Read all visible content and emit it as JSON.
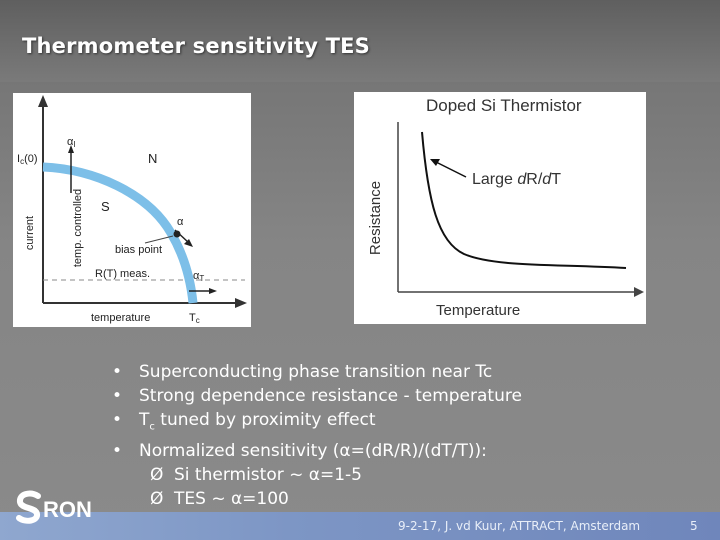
{
  "slide": {
    "title": "Thermometer sensitivity TES",
    "footer": "9-2-17, J. vd Kuur, ATTRACT, Amsterdam",
    "page_number": "5",
    "logo_text": "RON"
  },
  "left_figure": {
    "labels": {
      "ic0": "I",
      "ic0_sub": "c",
      "ic0_suffix": "(0)",
      "current": "current",
      "alpha_i": "α",
      "alpha_i_sub": "I",
      "N": "N",
      "S": "S",
      "temp_controlled": "temp. controlled",
      "alpha": "α",
      "bias_point": "bias point",
      "rt_meas": "R(T) meas.",
      "alpha_t": "α",
      "alpha_t_sub": "T",
      "temperature": "temperature",
      "tc": "T",
      "tc_sub": "c"
    },
    "curve_color": "#7dbfe8"
  },
  "right_figure": {
    "title": "Doped Si Thermistor",
    "annotation_prefix": "Large ",
    "annotation_italic": "d",
    "annotation_mid": "R/",
    "annotation_italic2": "d",
    "annotation_suffix": "T",
    "ylabel": "Resistance",
    "xlabel": "Temperature"
  },
  "bullets": [
    "Superconducting phase transition near Tc",
    "Strong dependence resistance - temperature",
    "Normalized sensitivity (α=(dR/R)/(dT/T)):"
  ],
  "bullet_tc": {
    "main": "T",
    "sub": "c",
    "rest": " tuned by proximity effect"
  },
  "bullet_glyph": "•",
  "sub_bullets": [
    "Si thermistor ~ α=1-5",
    "TES ~ α=100"
  ],
  "sub_bullet_glyph": "Ø"
}
